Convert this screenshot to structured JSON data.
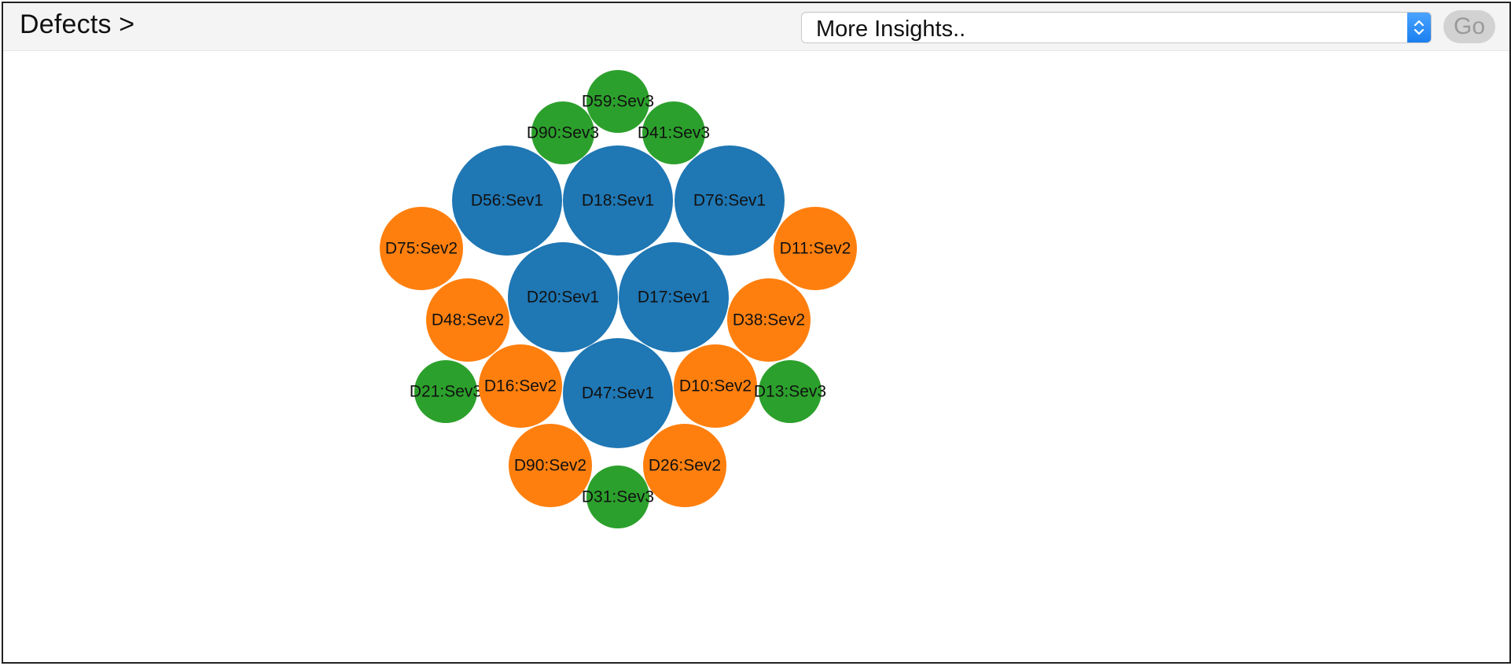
{
  "header": {
    "title": "Defects >",
    "insights_select": {
      "selected": "More Insights.."
    },
    "go_label": "Go"
  },
  "colors": {
    "Sev1": "#1f77b4",
    "Sev2": "#ff7f0e",
    "Sev3": "#2ca02c"
  },
  "chart_data": {
    "type": "bubble",
    "title": "",
    "groups": [
      "Sev1",
      "Sev2",
      "Sev3"
    ],
    "nodes": [
      {
        "label": "D59:Sev3",
        "severity": "Sev3"
      },
      {
        "label": "D90:Sev3",
        "severity": "Sev3"
      },
      {
        "label": "D41:Sev3",
        "severity": "Sev3"
      },
      {
        "label": "D56:Sev1",
        "severity": "Sev1"
      },
      {
        "label": "D18:Sev1",
        "severity": "Sev1"
      },
      {
        "label": "D76:Sev1",
        "severity": "Sev1"
      },
      {
        "label": "D75:Sev2",
        "severity": "Sev2"
      },
      {
        "label": "D11:Sev2",
        "severity": "Sev2"
      },
      {
        "label": "D20:Sev1",
        "severity": "Sev1"
      },
      {
        "label": "D17:Sev1",
        "severity": "Sev1"
      },
      {
        "label": "D48:Sev2",
        "severity": "Sev2"
      },
      {
        "label": "D38:Sev2",
        "severity": "Sev2"
      },
      {
        "label": "D21:Sev3",
        "severity": "Sev3"
      },
      {
        "label": "D16:Sev2",
        "severity": "Sev2"
      },
      {
        "label": "D47:Sev1",
        "severity": "Sev1"
      },
      {
        "label": "D10:Sev2",
        "severity": "Sev2"
      },
      {
        "label": "D13:Sev3",
        "severity": "Sev3"
      },
      {
        "label": "D90:Sev2",
        "severity": "Sev2"
      },
      {
        "label": "D26:Sev2",
        "severity": "Sev2"
      },
      {
        "label": "D31:Sev3",
        "severity": "Sev3"
      }
    ]
  }
}
